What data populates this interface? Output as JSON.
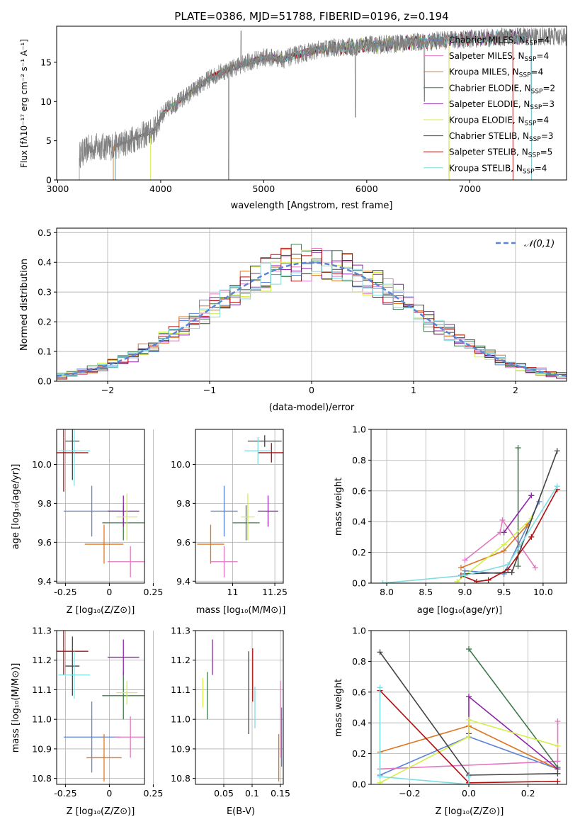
{
  "title": "PLATE=0386, MJD=51788, FIBERID=0196, z=0.194",
  "models": [
    {
      "name": "Chabrier MILES",
      "nssp": "4",
      "color": "#5b84d6"
    },
    {
      "name": "Salpeter MILES",
      "nssp": "4",
      "color": "#e377c2"
    },
    {
      "name": "Kroupa MILES",
      "nssp": "4",
      "color": "#dd7722"
    },
    {
      "name": "Chabrier ELODIE",
      "nssp": "2",
      "color": "#3f7a4a"
    },
    {
      "name": "Salpeter ELODIE",
      "nssp": "3",
      "color": "#8e24aa"
    },
    {
      "name": "Kroupa ELODIE",
      "nssp": "4",
      "color": "#d4ee4a"
    },
    {
      "name": "Chabrier STELIB",
      "nssp": "3",
      "color": "#444444"
    },
    {
      "name": "Salpeter STELIB",
      "nssp": "5",
      "color": "#b01010"
    },
    {
      "name": "Kroupa STELIB",
      "nssp": "4",
      "color": "#7fdde2"
    }
  ],
  "labels": {
    "spec_x": "wavelength [Angstrom, rest frame]",
    "spec_y": "Flux [fλ10⁻¹⁷ erg cm⁻² s⁻¹ A⁻¹]",
    "hist_x": "(data-model)/error",
    "hist_y": "Normed distribution",
    "hist_legend": "𝒩(0,1)",
    "z_x": "Z [log₁₀(Z/Z⊙)]",
    "age_y": "age  [log₁₀(age/yr)]",
    "mass_x": "mass [log₁₀(M/M⊙)]",
    "mass_y": "mass [log₁₀(M/M⊙)]",
    "ebv_x": "E(B-V)",
    "agew_x": "age  [log₁₀(age/yr)]",
    "w_y": "mass weight",
    "zw_x": "Z [log₁₀(Z/Z⊙)]"
  },
  "chart_data": [
    {
      "id": "spectrum",
      "type": "line",
      "title": "PLATE=0386, MJD=51788, FIBERID=0196, z=0.194",
      "xlabel": "wavelength [Angstrom, rest frame]",
      "ylabel": "Flux [fλ10⁻¹⁷ erg cm⁻² s⁻¹ A⁻¹]",
      "xlim": [
        2990,
        7940
      ],
      "ylim": [
        0,
        19.6
      ],
      "xticks": [
        3000,
        4000,
        5000,
        6000,
        7000
      ],
      "yticks": [
        0,
        5,
        10,
        15
      ],
      "data_envelope": {
        "x": [
          3210,
          3300,
          3400,
          3500,
          3600,
          3700,
          3800,
          3900,
          3950,
          4000,
          4100,
          4200,
          4300,
          4400,
          4500,
          4600,
          4700,
          4800,
          4900,
          5000,
          5100,
          5200,
          5300,
          5400,
          5500,
          5600,
          5700,
          5800,
          5900,
          6000,
          6100,
          6200,
          6300,
          6400,
          6500,
          6600,
          6700,
          6800,
          6900,
          7000,
          7100,
          7200,
          7300,
          7400,
          7500
        ],
        "y": [
          3.2,
          4.0,
          4.3,
          4.2,
          4.5,
          5.0,
          5.6,
          6.0,
          6.6,
          8.2,
          9.4,
          10.2,
          11.2,
          12.2,
          13.2,
          13.8,
          14.3,
          14.8,
          15.2,
          15.6,
          15.6,
          15.4,
          15.9,
          16.2,
          16.5,
          16.7,
          16.9,
          16.9,
          17.0,
          17.3,
          17.2,
          17.3,
          17.4,
          17.5,
          17.6,
          17.6,
          17.8,
          17.8,
          17.9,
          18.0,
          18.1,
          18.1,
          18.2,
          18.3,
          18.3
        ]
      }
    },
    {
      "id": "residuals",
      "type": "histogram",
      "xlabel": "(data-model)/error",
      "ylabel": "Normed distribution",
      "xlim": [
        -2.5,
        2.5
      ],
      "ylim": [
        0,
        0.515
      ],
      "xticks": [
        -2,
        -1,
        0,
        1,
        2
      ],
      "yticks": [
        0.0,
        0.1,
        0.2,
        0.3,
        0.4,
        0.5
      ],
      "bin_width": 0.1,
      "reference": "N(0,1)"
    },
    {
      "id": "age_vs_Z",
      "type": "errorbar",
      "xlabel": "Z [log10(Z/Zsun)]",
      "ylabel": "age [log10(age/yr)]",
      "xlim": [
        -0.3,
        0.2
      ],
      "ylim": [
        9.39,
        10.18
      ],
      "xticks": [
        -0.25,
        0.0,
        0.25
      ],
      "yticks": [
        9.4,
        9.6,
        9.8,
        10.0
      ],
      "points": [
        {
          "model": "Chabrier MILES",
          "x": -0.1,
          "y": 9.76,
          "xerr": 0.16,
          "yerr": 0.13
        },
        {
          "model": "Salpeter MILES",
          "x": 0.12,
          "y": 9.5,
          "xerr": 0.13,
          "yerr": 0.08
        },
        {
          "model": "Kroupa MILES",
          "x": -0.03,
          "y": 9.59,
          "xerr": 0.11,
          "yerr": 0.1
        },
        {
          "model": "Chabrier ELODIE",
          "x": 0.08,
          "y": 9.7,
          "xerr": 0.12,
          "yerr": 0.09
        },
        {
          "model": "Salpeter ELODIE",
          "x": 0.08,
          "y": 9.76,
          "xerr": 0.09,
          "yerr": 0.08
        },
        {
          "model": "Kroupa ELODIE",
          "x": 0.1,
          "y": 9.73,
          "xerr": 0.06,
          "yerr": 0.12
        },
        {
          "model": "Chabrier STELIB",
          "x": -0.21,
          "y": 10.12,
          "xerr": 0.04,
          "yerr": 0.2
        },
        {
          "model": "Salpeter STELIB",
          "x": -0.26,
          "y": 10.06,
          "xerr": 0.14,
          "yerr": 0.2
        },
        {
          "model": "Kroupa STELIB",
          "x": -0.2,
          "y": 10.07,
          "xerr": 0.09,
          "yerr": 0.18
        }
      ]
    },
    {
      "id": "age_vs_mass",
      "type": "errorbar",
      "xlabel": "mass [log10(M/Msun)]",
      "ylabel": "",
      "xlim": [
        10.78,
        11.3
      ],
      "ylim": [
        9.39,
        10.18
      ],
      "xticks": [
        11.0,
        11.25
      ],
      "yticks": [
        9.4,
        9.6,
        9.8,
        10.0
      ],
      "points": [
        {
          "model": "Chabrier MILES",
          "x": 10.95,
          "y": 9.76,
          "xerr": 0.08,
          "yerr": 0.13
        },
        {
          "model": "Salpeter MILES",
          "x": 10.95,
          "y": 9.5,
          "xerr": 0.08,
          "yerr": 0.08
        },
        {
          "model": "Kroupa MILES",
          "x": 10.87,
          "y": 9.59,
          "xerr": 0.08,
          "yerr": 0.1
        },
        {
          "model": "Chabrier ELODIE",
          "x": 11.08,
          "y": 9.7,
          "xerr": 0.08,
          "yerr": 0.09
        },
        {
          "model": "Salpeter ELODIE",
          "x": 11.21,
          "y": 9.76,
          "xerr": 0.06,
          "yerr": 0.08
        },
        {
          "model": "Kroupa ELODIE",
          "x": 11.09,
          "y": 9.73,
          "xerr": 0.04,
          "yerr": 0.12
        },
        {
          "model": "Chabrier STELIB",
          "x": 11.19,
          "y": 10.12,
          "xerr": 0.1,
          "yerr": 0.03
        },
        {
          "model": "Salpeter STELIB",
          "x": 11.23,
          "y": 10.06,
          "xerr": 0.08,
          "yerr": 0.05
        },
        {
          "model": "Kroupa STELIB",
          "x": 11.15,
          "y": 10.07,
          "xerr": 0.08,
          "yerr": 0.07
        }
      ]
    },
    {
      "id": "weight_vs_age",
      "type": "line",
      "xlabel": "age [log10(age/yr)]",
      "ylabel": "mass weight",
      "xlim": [
        7.8,
        10.3
      ],
      "ylim": [
        0,
        1.0
      ],
      "xticks": [
        8.0,
        8.5,
        9.0,
        9.5,
        10.0
      ],
      "yticks": [
        0.0,
        0.2,
        0.4,
        0.6,
        0.8,
        1.0
      ],
      "series": [
        {
          "model": "Chabrier MILES",
          "x": [
            9.0,
            9.5,
            9.95
          ],
          "y": [
            0.08,
            0.06,
            0.53
          ]
        },
        {
          "model": "Salpeter MILES",
          "x": [
            9.0,
            9.45,
            9.48,
            9.9
          ],
          "y": [
            0.15,
            0.33,
            0.41,
            0.1
          ]
        },
        {
          "model": "Kroupa MILES",
          "x": [
            8.95,
            9.5,
            9.8
          ],
          "y": [
            0.1,
            0.21,
            0.38
          ]
        },
        {
          "model": "Chabrier ELODIE",
          "x": [
            9.68,
            9.68
          ],
          "y": [
            0.11,
            0.88
          ]
        },
        {
          "model": "Salpeter ELODIE",
          "x": [
            9.5,
            9.85
          ],
          "y": [
            0.33,
            0.57
          ]
        },
        {
          "model": "Kroupa ELODIE",
          "x": [
            8.9,
            9.5,
            9.85
          ],
          "y": [
            0.01,
            0.25,
            0.42
          ]
        },
        {
          "model": "Chabrier STELIB",
          "x": [
            9.0,
            9.6,
            10.18
          ],
          "y": [
            0.06,
            0.07,
            0.86
          ]
        },
        {
          "model": "Salpeter STELIB",
          "x": [
            8.95,
            9.15,
            9.3,
            9.55,
            9.85,
            10.18
          ],
          "y": [
            0.05,
            0.01,
            0.02,
            0.09,
            0.3,
            0.61
          ]
        },
        {
          "model": "Kroupa STELIB",
          "x": [
            7.95,
            9.0,
            9.55,
            10.18
          ],
          "y": [
            0.0,
            0.05,
            0.12,
            0.63
          ]
        }
      ]
    },
    {
      "id": "mass_vs_Z",
      "type": "errorbar",
      "xlabel": "Z [log10(Z/Zsun)]",
      "ylabel": "mass [log10(M/Msun)]",
      "xlim": [
        -0.3,
        0.2
      ],
      "ylim": [
        10.78,
        11.3
      ],
      "xticks": [
        -0.25,
        0.0,
        0.25
      ],
      "yticks": [
        10.8,
        10.9,
        11.0,
        11.1,
        11.2,
        11.3
      ],
      "points": [
        {
          "model": "Chabrier MILES",
          "x": -0.1,
          "y": 10.94,
          "xerr": 0.16,
          "yerr": 0.12
        },
        {
          "model": "Salpeter MILES",
          "x": 0.12,
          "y": 10.94,
          "xerr": 0.09,
          "yerr": 0.07
        },
        {
          "model": "Kroupa MILES",
          "x": -0.03,
          "y": 10.87,
          "xerr": 0.1,
          "yerr": 0.08
        },
        {
          "model": "Chabrier ELODIE",
          "x": 0.08,
          "y": 11.08,
          "xerr": 0.12,
          "yerr": 0.08
        },
        {
          "model": "Salpeter ELODIE",
          "x": 0.08,
          "y": 11.21,
          "xerr": 0.09,
          "yerr": 0.06
        },
        {
          "model": "Kroupa ELODIE",
          "x": 0.1,
          "y": 11.09,
          "xerr": 0.06,
          "yerr": 0.04
        },
        {
          "model": "Chabrier STELIB",
          "x": -0.21,
          "y": 11.18,
          "xerr": 0.04,
          "yerr": 0.1
        },
        {
          "model": "Salpeter STELIB",
          "x": -0.26,
          "y": 11.23,
          "xerr": 0.14,
          "yerr": 0.08
        },
        {
          "model": "Kroupa STELIB",
          "x": -0.2,
          "y": 11.15,
          "xerr": 0.09,
          "yerr": 0.08
        }
      ]
    },
    {
      "id": "mass_vs_ebv",
      "type": "errorbar",
      "xlabel": "E(B-V)",
      "ylabel": "",
      "xlim": [
        0.0,
        0.155
      ],
      "ylim": [
        10.78,
        11.3
      ],
      "xticks": [
        0.05,
        0.1,
        0.15
      ],
      "yticks": [
        10.8,
        10.9,
        11.0,
        11.1,
        11.2,
        11.3
      ],
      "points": [
        {
          "model": "Chabrier MILES",
          "x": 0.152,
          "y": 10.94,
          "xerr": 0,
          "yerr": 0.1
        },
        {
          "model": "Salpeter MILES",
          "x": 0.15,
          "y": 11.0,
          "xerr": 0,
          "yerr": 0.13
        },
        {
          "model": "Kroupa MILES",
          "x": 0.147,
          "y": 10.87,
          "xerr": 0,
          "yerr": 0.08
        },
        {
          "model": "Chabrier ELODIE",
          "x": 0.021,
          "y": 11.08,
          "xerr": 0,
          "yerr": 0.08
        },
        {
          "model": "Salpeter ELODIE",
          "x": 0.03,
          "y": 11.21,
          "xerr": 0,
          "yerr": 0.06
        },
        {
          "model": "Kroupa ELODIE",
          "x": 0.013,
          "y": 11.09,
          "xerr": 0,
          "yerr": 0.05
        },
        {
          "model": "Chabrier STELIB",
          "x": 0.094,
          "y": 11.09,
          "xerr": 0,
          "yerr": 0.14
        },
        {
          "model": "Salpeter STELIB",
          "x": 0.101,
          "y": 11.15,
          "xerr": 0,
          "yerr": 0.09
        },
        {
          "model": "Kroupa STELIB",
          "x": 0.105,
          "y": 11.04,
          "xerr": 0,
          "yerr": 0.07
        }
      ]
    },
    {
      "id": "weight_vs_Z",
      "type": "line",
      "xlabel": "Z [log10(Z/Zsun)]",
      "ylabel": "mass weight",
      "xlim": [
        -0.33,
        0.33
      ],
      "ylim": [
        0,
        1.0
      ],
      "xticks": [
        -0.2,
        0.0,
        0.2
      ],
      "yticks": [
        0.0,
        0.2,
        0.4,
        0.6,
        0.8,
        1.0
      ],
      "series": [
        {
          "model": "Chabrier MILES",
          "x": [
            -0.3,
            0.0,
            0.3
          ],
          "y": [
            0.06,
            0.31,
            0.1
          ]
        },
        {
          "model": "Salpeter MILES",
          "x": [
            -0.3,
            0.3,
            0.3
          ],
          "y": [
            0.1,
            0.15,
            0.41
          ]
        },
        {
          "model": "Kroupa MILES",
          "x": [
            -0.3,
            0.0,
            0.3
          ],
          "y": [
            0.21,
            0.38,
            0.1
          ]
        },
        {
          "model": "Chabrier ELODIE",
          "x": [
            0.0,
            0.3
          ],
          "y": [
            0.88,
            0.11
          ]
        },
        {
          "model": "Salpeter ELODIE",
          "x": [
            0.0,
            0.0,
            0.3
          ],
          "y": [
            0.33,
            0.57,
            0.1
          ]
        },
        {
          "model": "Kroupa ELODIE",
          "x": [
            -0.3,
            0.0,
            0.0,
            0.3
          ],
          "y": [
            0.01,
            0.31,
            0.42,
            0.25
          ]
        },
        {
          "model": "Chabrier STELIB",
          "x": [
            -0.3,
            0.0,
            0.3
          ],
          "y": [
            0.86,
            0.06,
            0.07
          ]
        },
        {
          "model": "Salpeter STELIB",
          "x": [
            -0.3,
            0.0,
            0.3
          ],
          "y": [
            0.61,
            0.01,
            0.02
          ]
        },
        {
          "model": "Kroupa STELIB",
          "x": [
            -0.3,
            -0.3,
            0.0,
            0.0
          ],
          "y": [
            0.63,
            0.05,
            0.0,
            0.05
          ]
        }
      ]
    }
  ]
}
